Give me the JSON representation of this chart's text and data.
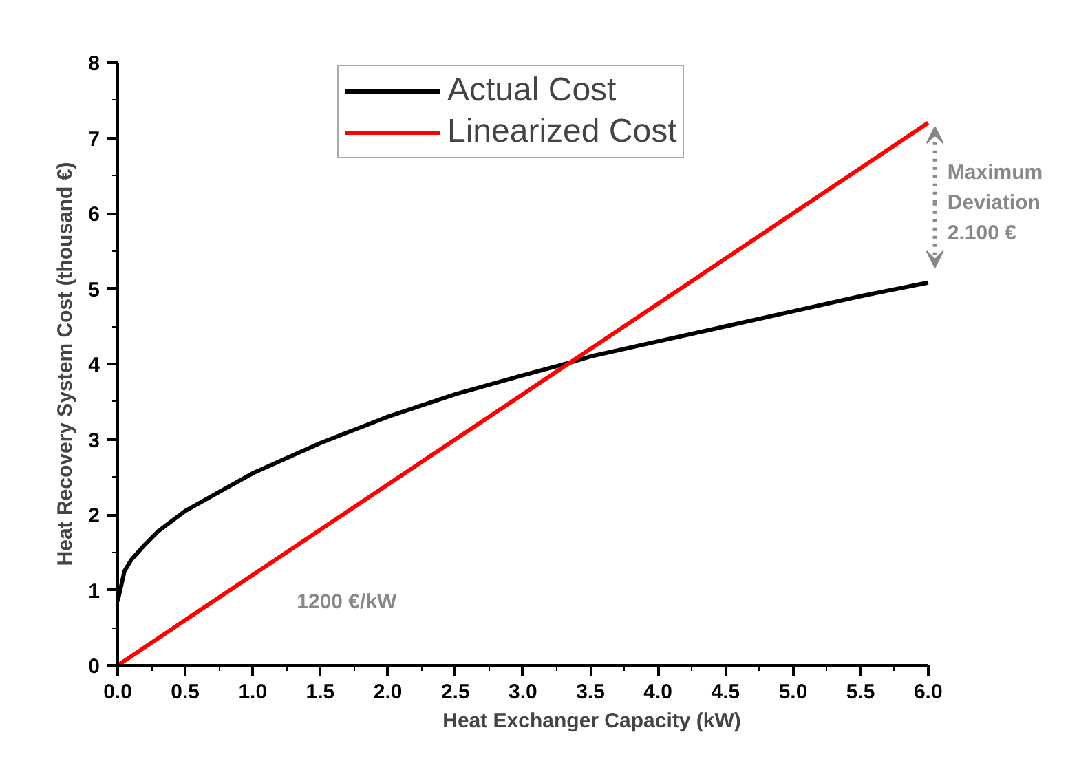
{
  "chart_data": {
    "type": "line",
    "xlabel": "Heat Exchanger Capacity (kW)",
    "ylabel": "Heat Recovery System Cost (thousand €)",
    "xlim": [
      0,
      6
    ],
    "ylim": [
      0,
      8
    ],
    "xticks": [
      {
        "value": 0,
        "label": "0.0"
      },
      {
        "value": 0.5,
        "label": "0.5"
      },
      {
        "value": 1,
        "label": "1.0"
      },
      {
        "value": 1.5,
        "label": "1.5"
      },
      {
        "value": 2,
        "label": "2.0"
      },
      {
        "value": 2.5,
        "label": "2.5"
      },
      {
        "value": 3,
        "label": "3.0"
      },
      {
        "value": 3.5,
        "label": "3.5"
      },
      {
        "value": 4,
        "label": "4.0"
      },
      {
        "value": 4.5,
        "label": "4.5"
      },
      {
        "value": 5,
        "label": "5.0"
      },
      {
        "value": 5.5,
        "label": "5.5"
      },
      {
        "value": 6,
        "label": "6.0"
      }
    ],
    "yticks": [
      0,
      1,
      2,
      3,
      4,
      5,
      6,
      7,
      8
    ],
    "grid": false,
    "legend": "top",
    "line_style": "solid",
    "marker": "none",
    "series": [
      {
        "name": "Actual Cost",
        "color": "#000000",
        "x": [
          0,
          0.05,
          0.1,
          0.2,
          0.3,
          0.5,
          0.75,
          1.0,
          1.5,
          2.0,
          2.5,
          3.0,
          3.35,
          3.5,
          4.0,
          4.5,
          5.0,
          5.5,
          6.0
        ],
        "values": [
          0.85,
          1.25,
          1.4,
          1.6,
          1.78,
          2.05,
          2.3,
          2.55,
          2.95,
          3.3,
          3.6,
          3.85,
          4.02,
          4.1,
          4.3,
          4.5,
          4.7,
          4.9,
          5.08
        ]
      },
      {
        "name": "Linearized Cost",
        "color": "#ff0000",
        "x": [
          0,
          6
        ],
        "values": [
          0,
          7.2
        ]
      }
    ],
    "annotations": [
      {
        "text": "1200 €/kW",
        "x": 1.0,
        "y": 1.2
      },
      "Maximum Deviation 2.100 €"
    ]
  }
}
